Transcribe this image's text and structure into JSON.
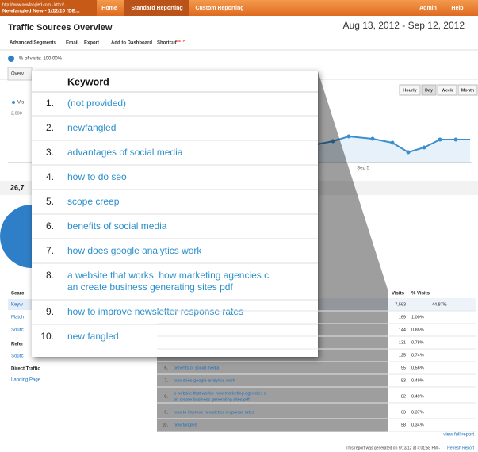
{
  "nav": {
    "account_url": "http://www.newfangled.com - http://...",
    "account_name": "Newfangled New - 1/12/10 [DE...",
    "tabs": [
      "Home",
      "Standard Reporting",
      "Custom Reporting"
    ],
    "right": [
      "Admin",
      "Help"
    ]
  },
  "header": {
    "title": "Traffic Sources Overview",
    "date_range": "Aug 13, 2012 - Sep 12, 2012"
  },
  "toolbar": {
    "items": [
      "Advanced Segments",
      "Email",
      "Export",
      "Add to Dashboard",
      "Shortcut"
    ],
    "badge": "BETA"
  },
  "segment": "% of visits: 100.00%",
  "tab": "Overv",
  "graph": {
    "buttons": [
      "Hourly",
      "Day",
      "Week",
      "Month"
    ],
    "legend": "Vis",
    "y_label": "2,000",
    "x_label": "Sep 5"
  },
  "summary": "26,7",
  "side_nav": [
    "Searc",
    "Keyw",
    "Match",
    "Sourc",
    "Refer",
    "Sourc",
    "Direct Traffic",
    "Landing Page"
  ],
  "table": {
    "columns": [
      "Visits",
      "% Visits"
    ],
    "rows": [
      {
        "visits": "7,563",
        "pct": "44.87%"
      },
      {
        "visits": "169",
        "pct": "1.00%"
      },
      {
        "visits": "144",
        "pct": "0.85%"
      },
      {
        "visits": "131",
        "pct": "0.78%"
      },
      {
        "visits": "125",
        "pct": "0.74%"
      },
      {
        "num": "6.",
        "keyword": "benefits of social media",
        "visits": "95",
        "pct": "0.56%"
      },
      {
        "num": "7.",
        "keyword": "how does google analytics work",
        "visits": "83",
        "pct": "0.49%"
      },
      {
        "num": "8.",
        "keyword": [
          "a website that works: how marketing agencies c",
          "an create business generating sites pdf"
        ],
        "visits": "82",
        "pct": "0.49%"
      },
      {
        "num": "9.",
        "keyword": "how to improve newsletter response rates",
        "visits": "63",
        "pct": "0.37%"
      },
      {
        "num": "10.",
        "keyword": "new fangled",
        "visits": "58",
        "pct": "0.34%"
      }
    ]
  },
  "overlay": {
    "header": "Keyword",
    "rows": [
      {
        "num": "1.",
        "keyword": "(not provided)"
      },
      {
        "num": "2.",
        "keyword": "newfangled"
      },
      {
        "num": "3.",
        "keyword": "advantages of social media"
      },
      {
        "num": "4.",
        "keyword": "how to do seo"
      },
      {
        "num": "5.",
        "keyword": "scope creep"
      },
      {
        "num": "6.",
        "keyword": "benefits of social media"
      },
      {
        "num": "7.",
        "keyword": "how does google analytics work"
      },
      {
        "num": "8.",
        "keyword": [
          "a website that works: how marketing agencies c",
          "an create business generating sites pdf"
        ]
      },
      {
        "num": "9.",
        "keyword": "how to improve newsletter response rates"
      },
      {
        "num": "10.",
        "keyword": "new fangled"
      }
    ]
  },
  "footer": {
    "view_full_report": "view full report",
    "generated": "This report was generated on 9/13/12 at 4:01:58 PM -",
    "refresh": "Refresh Report"
  }
}
